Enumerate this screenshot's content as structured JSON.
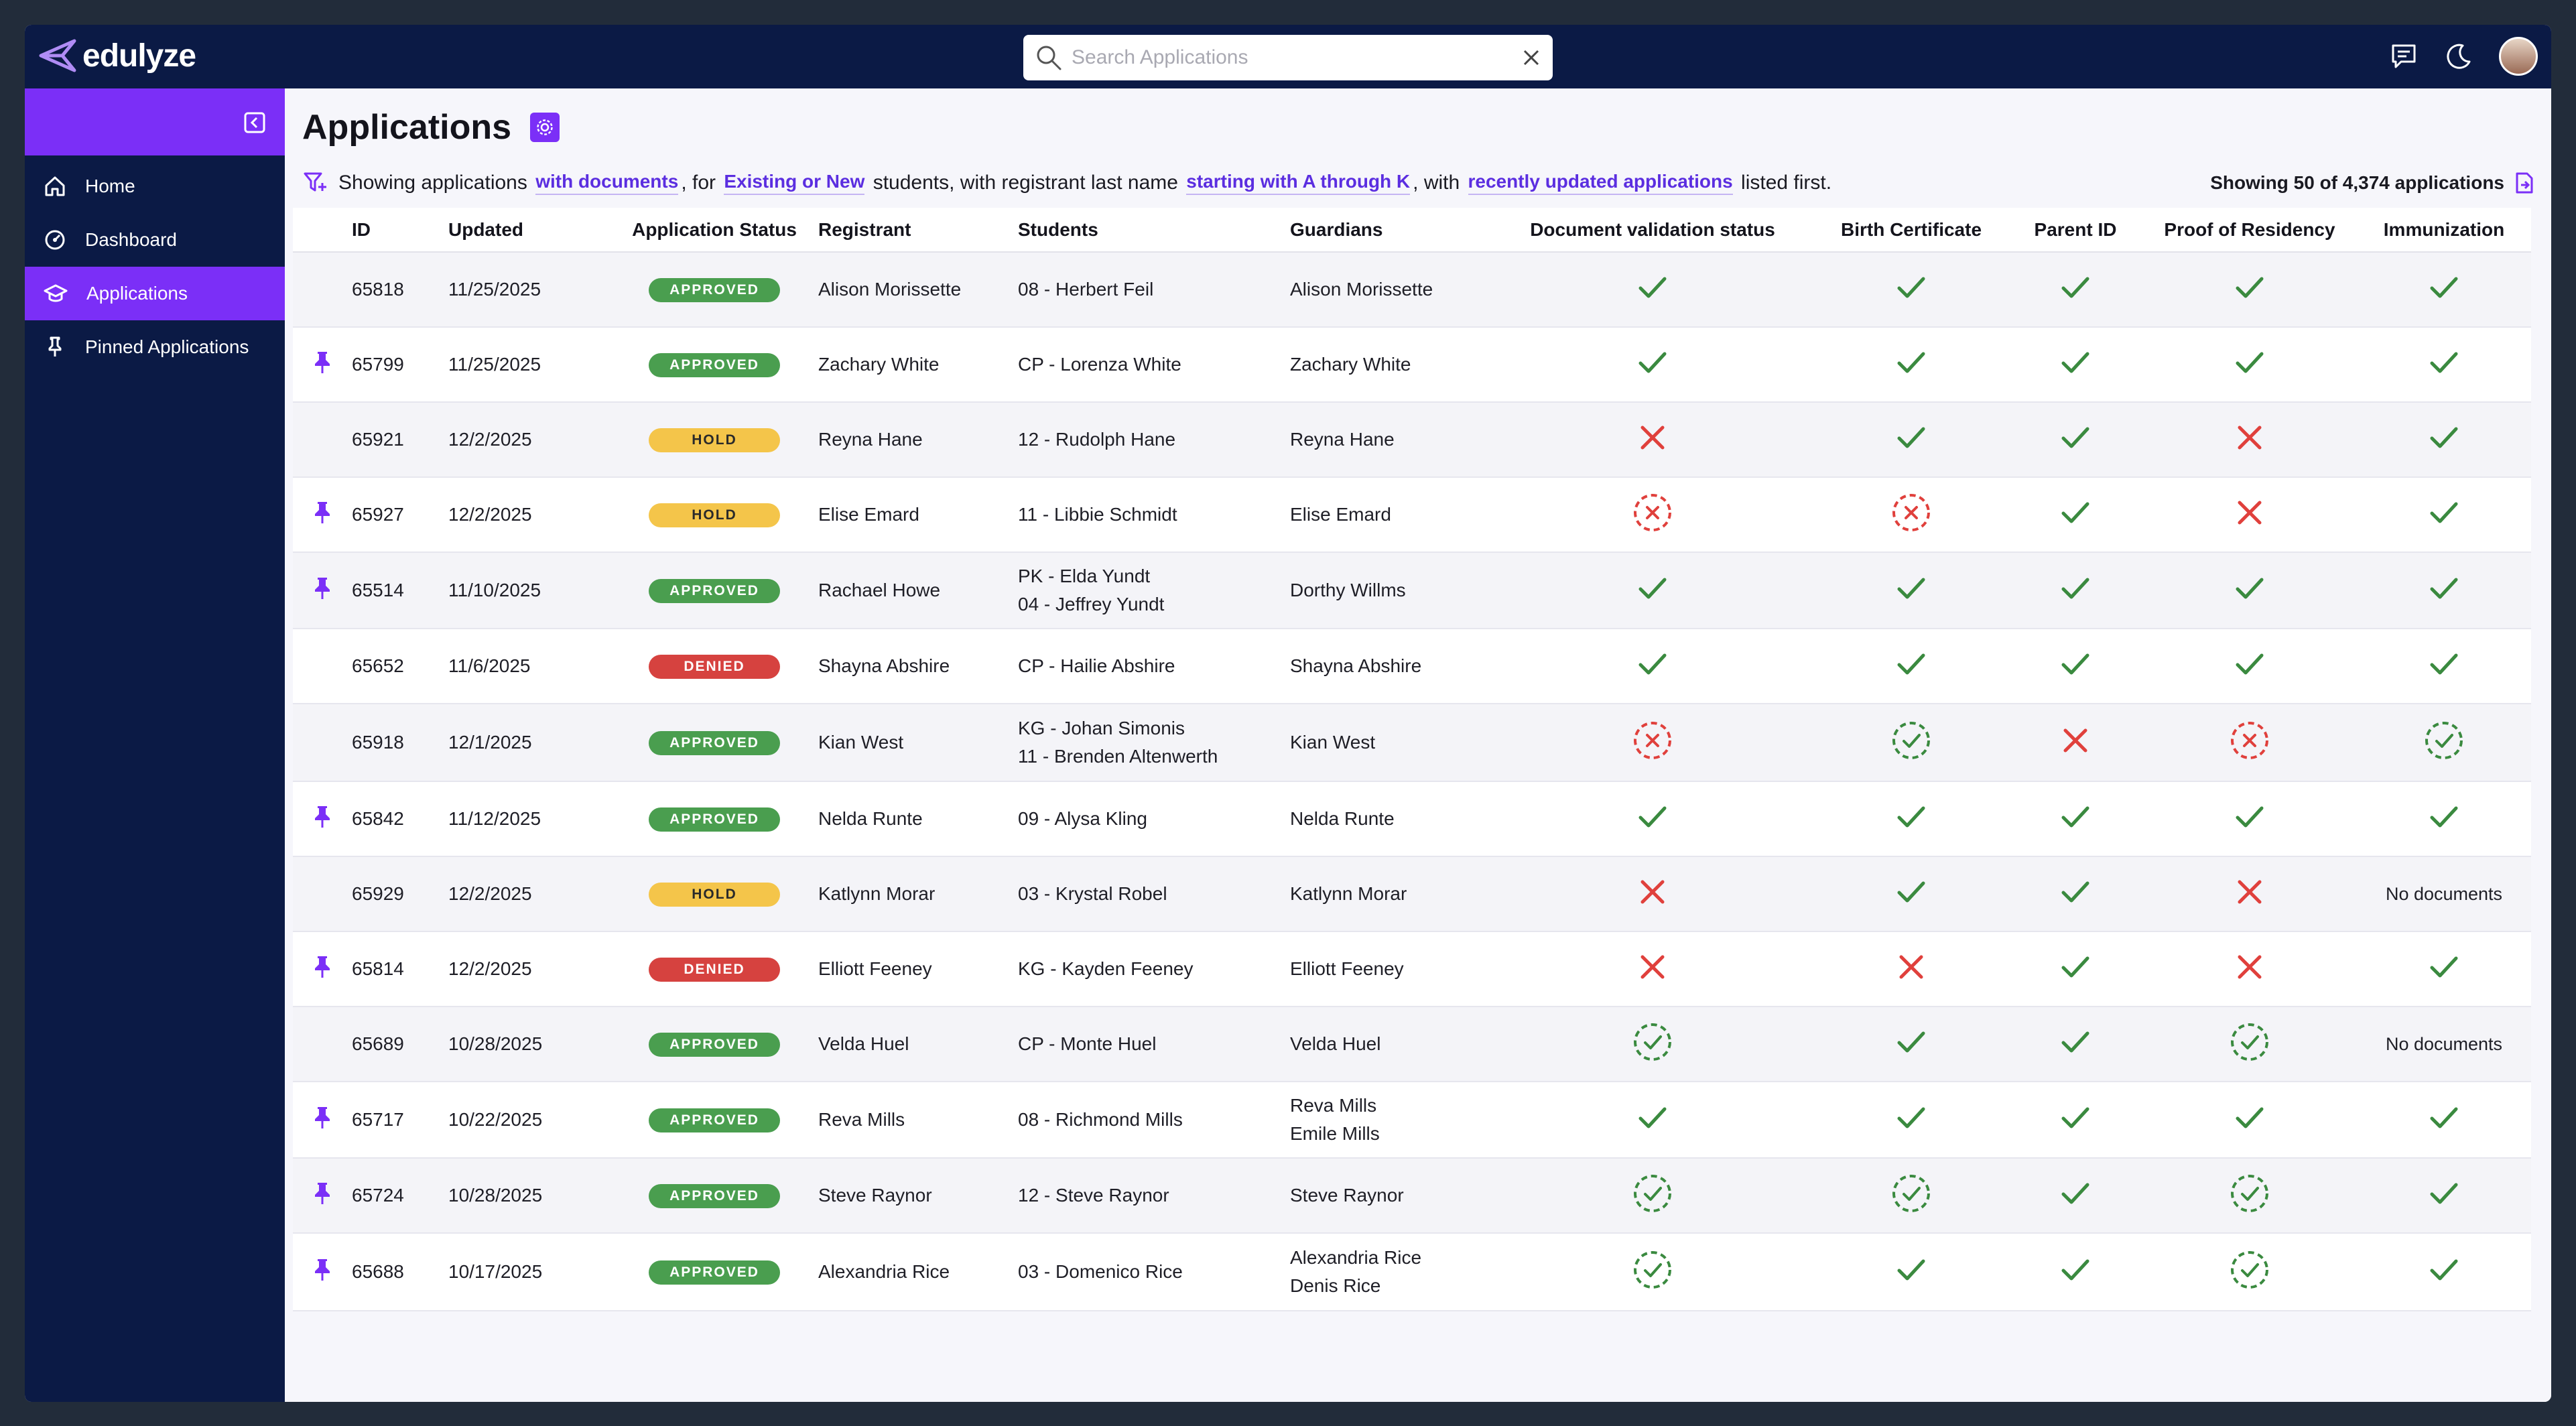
{
  "app": {
    "name": "edulyze"
  },
  "search": {
    "placeholder": "Search Applications"
  },
  "sidebar": {
    "items": [
      {
        "label": "Home",
        "icon": "home-icon"
      },
      {
        "label": "Dashboard",
        "icon": "dashboard-icon"
      },
      {
        "label": "Applications",
        "icon": "graduation-cap-icon",
        "active": true
      },
      {
        "label": "Pinned Applications",
        "icon": "pin-icon"
      }
    ]
  },
  "page": {
    "title": "Applications",
    "filter": {
      "t1": "Showing applications ",
      "f1": "with documents",
      "t2": ", for ",
      "f2": "Existing or New",
      "t3": " students, with registrant last name ",
      "f3": "starting with A through K",
      "t4": ", with ",
      "f4": "recently updated applications",
      "t5": " listed first."
    },
    "showing": "Showing 50 of 4,374 applications"
  },
  "colors": {
    "accent": "#7b2ff7",
    "navy": "#0b1a45",
    "approved": "#4a9e4f",
    "hold": "#f4c54a",
    "denied": "#d6423f",
    "check": "#3a8a3f",
    "cross": "#e0403c"
  },
  "table": {
    "headers": [
      "",
      "ID",
      "Updated",
      "Application Status",
      "Registrant",
      "Students",
      "Guardians",
      "Document validation status",
      "Birth Certificate",
      "Parent ID",
      "Proof of Residency",
      "Immunization"
    ],
    "rows": [
      {
        "pinned": false,
        "id": "65818",
        "updated": "11/25/2025",
        "status": "APPROVED",
        "registrant": "Alison Morissette",
        "students": [
          "08 - Herbert Feil"
        ],
        "guardians": [
          "Alison Morissette"
        ],
        "docs": [
          "check",
          "check",
          "check",
          "check",
          "check"
        ]
      },
      {
        "pinned": true,
        "id": "65799",
        "updated": "11/25/2025",
        "status": "APPROVED",
        "registrant": "Zachary White",
        "students": [
          "CP - Lorenza White"
        ],
        "guardians": [
          "Zachary White"
        ],
        "docs": [
          "check",
          "check",
          "check",
          "check",
          "check"
        ]
      },
      {
        "pinned": false,
        "id": "65921",
        "updated": "12/2/2025",
        "status": "HOLD",
        "registrant": "Reyna Hane",
        "students": [
          "12 - Rudolph Hane"
        ],
        "guardians": [
          "Reyna Hane"
        ],
        "docs": [
          "cross",
          "check",
          "check",
          "cross",
          "check"
        ]
      },
      {
        "pinned": true,
        "id": "65927",
        "updated": "12/2/2025",
        "status": "HOLD",
        "registrant": "Elise Emard",
        "students": [
          "11 - Libbie Schmidt"
        ],
        "guardians": [
          "Elise Emard"
        ],
        "docs": [
          "pending-cross",
          "pending-cross",
          "check",
          "cross",
          "check"
        ]
      },
      {
        "pinned": true,
        "id": "65514",
        "updated": "11/10/2025",
        "status": "APPROVED",
        "registrant": "Rachael Howe",
        "students": [
          "PK - Elda Yundt",
          "04 - Jeffrey Yundt"
        ],
        "guardians": [
          "Dorthy Willms"
        ],
        "docs": [
          "check",
          "check",
          "check",
          "check",
          "check"
        ]
      },
      {
        "pinned": false,
        "id": "65652",
        "updated": "11/6/2025",
        "status": "DENIED",
        "registrant": "Shayna Abshire",
        "students": [
          "CP - Hailie Abshire"
        ],
        "guardians": [
          "Shayna Abshire"
        ],
        "docs": [
          "check",
          "check",
          "check",
          "check",
          "check"
        ]
      },
      {
        "pinned": false,
        "id": "65918",
        "updated": "12/1/2025",
        "status": "APPROVED",
        "registrant": "Kian West",
        "students": [
          "KG - Johan Simonis",
          "11 - Brenden Altenwerth"
        ],
        "guardians": [
          "Kian West"
        ],
        "docs": [
          "pending-cross",
          "pending-check",
          "cross",
          "pending-cross",
          "pending-check"
        ]
      },
      {
        "pinned": true,
        "id": "65842",
        "updated": "11/12/2025",
        "status": "APPROVED",
        "registrant": "Nelda Runte",
        "students": [
          "09 - Alysa Kling"
        ],
        "guardians": [
          "Nelda Runte"
        ],
        "docs": [
          "check",
          "check",
          "check",
          "check",
          "check"
        ]
      },
      {
        "pinned": false,
        "id": "65929",
        "updated": "12/2/2025",
        "status": "HOLD",
        "registrant": "Katlynn Morar",
        "students": [
          "03 - Krystal Robel"
        ],
        "guardians": [
          "Katlynn Morar"
        ],
        "docs": [
          "cross",
          "check",
          "check",
          "cross",
          "none"
        ]
      },
      {
        "pinned": true,
        "id": "65814",
        "updated": "12/2/2025",
        "status": "DENIED",
        "registrant": "Elliott Feeney",
        "students": [
          "KG - Kayden Feeney"
        ],
        "guardians": [
          "Elliott Feeney"
        ],
        "docs": [
          "cross",
          "cross",
          "check",
          "cross",
          "check"
        ]
      },
      {
        "pinned": false,
        "id": "65689",
        "updated": "10/28/2025",
        "status": "APPROVED",
        "registrant": "Velda Huel",
        "students": [
          "CP - Monte Huel"
        ],
        "guardians": [
          "Velda Huel"
        ],
        "docs": [
          "pending-check",
          "check",
          "check",
          "pending-check",
          "none"
        ]
      },
      {
        "pinned": true,
        "id": "65717",
        "updated": "10/22/2025",
        "status": "APPROVED",
        "registrant": "Reva Mills",
        "students": [
          "08 - Richmond Mills"
        ],
        "guardians": [
          "Reva Mills",
          "Emile Mills"
        ],
        "docs": [
          "check",
          "check",
          "check",
          "check",
          "check"
        ]
      },
      {
        "pinned": true,
        "id": "65724",
        "updated": "10/28/2025",
        "status": "APPROVED",
        "registrant": "Steve Raynor",
        "students": [
          "12 - Steve Raynor"
        ],
        "guardians": [
          "Steve Raynor"
        ],
        "docs": [
          "pending-check",
          "pending-check",
          "check",
          "pending-check",
          "check"
        ]
      },
      {
        "pinned": true,
        "id": "65688",
        "updated": "10/17/2025",
        "status": "APPROVED",
        "registrant": "Alexandria Rice",
        "students": [
          "03 - Domenico Rice"
        ],
        "guardians": [
          "Alexandria Rice",
          "Denis Rice"
        ],
        "docs": [
          "pending-check",
          "check",
          "check",
          "pending-check",
          "check"
        ]
      }
    ],
    "no_documents_label": "No documents"
  }
}
